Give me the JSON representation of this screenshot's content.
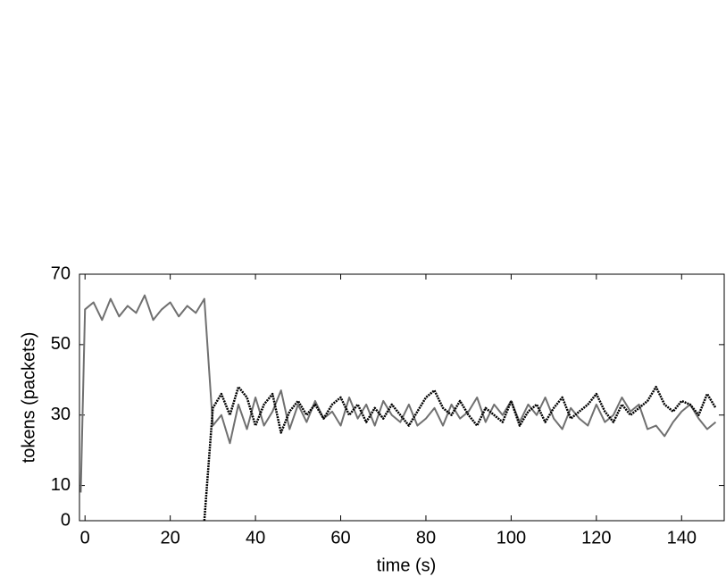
{
  "chart_data": {
    "type": "line",
    "xlabel": "time (s)",
    "ylabel": "tokens (packets)",
    "x": [
      -1,
      0,
      2,
      4,
      6,
      8,
      10,
      12,
      14,
      16,
      18,
      20,
      22,
      24,
      26,
      28,
      30,
      32,
      34,
      36,
      38,
      40,
      42,
      44,
      46,
      48,
      50,
      52,
      54,
      56,
      58,
      60,
      62,
      64,
      66,
      68,
      70,
      72,
      74,
      76,
      78,
      80,
      82,
      84,
      86,
      88,
      90,
      92,
      94,
      96,
      98,
      100,
      102,
      104,
      106,
      108,
      110,
      112,
      114,
      116,
      118,
      120,
      122,
      124,
      126,
      128,
      130,
      132,
      134,
      136,
      138,
      140,
      142,
      144,
      146,
      148
    ],
    "series": [
      {
        "color": "#707070",
        "style": "solid",
        "values": [
          8,
          60,
          62,
          57,
          63,
          58,
          61,
          59,
          64,
          57,
          60,
          62,
          58,
          61,
          59,
          63,
          27,
          30,
          22,
          33,
          26,
          35,
          27,
          31,
          37,
          26,
          33,
          28,
          34,
          29,
          31,
          27,
          35,
          29,
          33,
          27,
          34,
          30,
          28,
          33,
          27,
          29,
          32,
          27,
          33,
          29,
          31,
          35,
          28,
          33,
          30,
          34,
          28,
          33,
          30,
          35,
          29,
          26,
          32,
          29,
          27,
          33,
          28,
          30,
          35,
          31,
          33,
          26,
          27,
          24,
          28,
          31,
          33,
          29,
          26,
          28
        ]
      },
      {
        "color": "#000000",
        "style": "dotted",
        "values": [
          null,
          null,
          null,
          null,
          null,
          null,
          null,
          null,
          null,
          null,
          null,
          null,
          null,
          null,
          null,
          0,
          32,
          36,
          30,
          38,
          35,
          27,
          33,
          36,
          25,
          31,
          34,
          30,
          33,
          29,
          33,
          35,
          30,
          33,
          28,
          32,
          29,
          33,
          30,
          27,
          31,
          35,
          37,
          32,
          30,
          34,
          30,
          27,
          32,
          30,
          28,
          34,
          27,
          31,
          33,
          28,
          32,
          35,
          29,
          31,
          33,
          36,
          31,
          28,
          33,
          30,
          32,
          34,
          38,
          33,
          31,
          34,
          33,
          30,
          36,
          32
        ]
      }
    ],
    "xlim": [
      -1.3,
      150
    ],
    "ylim": [
      0,
      70
    ],
    "xticks": [
      0,
      20,
      40,
      60,
      80,
      100,
      120,
      140
    ],
    "yticks": [
      0,
      10,
      30,
      50,
      70
    ]
  }
}
